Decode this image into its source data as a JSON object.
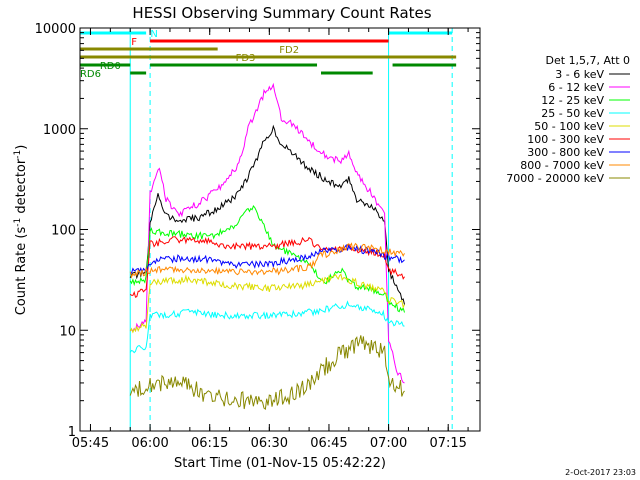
{
  "chart_data": {
    "type": "line",
    "title": "HESSI Observing Summary Count Rates",
    "xlabel": "Start Time (01-Nov-15 05:42:22)",
    "ylabel_main": "Count Rate (s",
    "ylabel_sup1": "-1",
    "ylabel_mid": " detector",
    "ylabel_sup2": "-1",
    "ylabel_end": ")",
    "y_scale": "log",
    "ylim": [
      1,
      10000
    ],
    "xlim": [
      "05:42:22",
      "07:23:00"
    ],
    "x_ticks": [
      "05:45",
      "06:00",
      "06:15",
      "06:30",
      "06:45",
      "07:00",
      "07:15"
    ],
    "y_ticks": [
      "1",
      "10",
      "100",
      "1000",
      "10000"
    ],
    "legend_header": "Det 1,5,7, Att 0",
    "legend_placement": "right",
    "timestamp": "2-Oct-2017 23:03",
    "series": [
      {
        "name": "3 - 6 keV",
        "color": "#000000",
        "points": [
          [
            "05:55",
            35
          ],
          [
            "05:59",
            36
          ],
          [
            "06:00",
            110
          ],
          [
            "06:02",
            230
          ],
          [
            "06:04",
            140
          ],
          [
            "06:07",
            120
          ],
          [
            "06:12",
            130
          ],
          [
            "06:17",
            160
          ],
          [
            "06:22",
            220
          ],
          [
            "06:26",
            420
          ],
          [
            "06:29",
            800
          ],
          [
            "06:31",
            1020
          ],
          [
            "06:33",
            700
          ],
          [
            "06:36",
            560
          ],
          [
            "06:40",
            400
          ],
          [
            "06:45",
            300
          ],
          [
            "06:48",
            260
          ],
          [
            "06:50",
            320
          ],
          [
            "06:52",
            200
          ],
          [
            "06:56",
            170
          ],
          [
            "06:59",
            120
          ],
          [
            "07:00",
            40
          ],
          [
            "07:03",
            22
          ],
          [
            "07:04",
            18
          ]
        ]
      },
      {
        "name": "6 - 12 keV",
        "color": "#ff00ff",
        "points": [
          [
            "05:55",
            10
          ],
          [
            "05:59",
            12
          ],
          [
            "06:00",
            230
          ],
          [
            "06:02",
            420
          ],
          [
            "06:03",
            320
          ],
          [
            "06:04",
            200
          ],
          [
            "06:07",
            140
          ],
          [
            "06:12",
            180
          ],
          [
            "06:17",
            250
          ],
          [
            "06:22",
            420
          ],
          [
            "06:25",
            1100
          ],
          [
            "06:29",
            2400
          ],
          [
            "06:31",
            2700
          ],
          [
            "06:33",
            1300
          ],
          [
            "06:36",
            1100
          ],
          [
            "06:40",
            750
          ],
          [
            "06:45",
            520
          ],
          [
            "06:48",
            480
          ],
          [
            "06:50",
            560
          ],
          [
            "06:52",
            350
          ],
          [
            "06:56",
            220
          ],
          [
            "06:59",
            140
          ],
          [
            "07:00",
            8
          ],
          [
            "07:02",
            4
          ],
          [
            "07:04",
            3
          ]
        ]
      },
      {
        "name": "12 - 25 keV",
        "color": "#00ff00",
        "points": [
          [
            "05:55",
            30
          ],
          [
            "05:59",
            32
          ],
          [
            "06:00",
            95
          ],
          [
            "06:07",
            90
          ],
          [
            "06:15",
            85
          ],
          [
            "06:20",
            100
          ],
          [
            "06:23",
            130
          ],
          [
            "06:26",
            175
          ],
          [
            "06:28",
            120
          ],
          [
            "06:31",
            70
          ],
          [
            "06:36",
            55
          ],
          [
            "06:40",
            45
          ],
          [
            "06:44",
            30
          ],
          [
            "06:48",
            40
          ],
          [
            "06:51",
            28
          ],
          [
            "06:56",
            25
          ],
          [
            "06:59",
            22
          ],
          [
            "07:00",
            20
          ],
          [
            "07:04",
            15
          ]
        ]
      },
      {
        "name": "25 - 50 keV",
        "color": "#00ffff",
        "points": [
          [
            "05:55",
            6
          ],
          [
            "05:59",
            7
          ],
          [
            "06:00",
            14
          ],
          [
            "06:10",
            15
          ],
          [
            "06:20",
            14
          ],
          [
            "06:30",
            14
          ],
          [
            "06:40",
            15
          ],
          [
            "06:50",
            18
          ],
          [
            "06:56",
            16
          ],
          [
            "06:59",
            14
          ],
          [
            "07:00",
            12
          ],
          [
            "07:04",
            11
          ]
        ]
      },
      {
        "name": "50 - 100 keV",
        "color": "#dddd00",
        "points": [
          [
            "05:55",
            10
          ],
          [
            "05:59",
            11
          ],
          [
            "06:00",
            30
          ],
          [
            "06:10",
            32
          ],
          [
            "06:20",
            28
          ],
          [
            "06:30",
            26
          ],
          [
            "06:40",
            28
          ],
          [
            "06:48",
            34
          ],
          [
            "06:54",
            28
          ],
          [
            "06:59",
            24
          ],
          [
            "07:00",
            20
          ],
          [
            "07:04",
            18
          ]
        ]
      },
      {
        "name": "100 - 300 keV",
        "color": "#ff0000",
        "points": [
          [
            "05:55",
            22
          ],
          [
            "05:59",
            25
          ],
          [
            "06:00",
            72
          ],
          [
            "06:07",
            80
          ],
          [
            "06:15",
            75
          ],
          [
            "06:20",
            68
          ],
          [
            "06:30",
            68
          ],
          [
            "06:40",
            78
          ],
          [
            "06:43",
            62
          ],
          [
            "06:50",
            66
          ],
          [
            "06:56",
            60
          ],
          [
            "06:59",
            55
          ],
          [
            "07:00",
            40
          ],
          [
            "07:04",
            34
          ]
        ]
      },
      {
        "name": "300 - 800 keV",
        "color": "#0000ff",
        "points": [
          [
            "05:55",
            38
          ],
          [
            "05:59",
            38
          ],
          [
            "06:00",
            48
          ],
          [
            "06:07",
            52
          ],
          [
            "06:15",
            50
          ],
          [
            "06:20",
            45
          ],
          [
            "06:30",
            45
          ],
          [
            "06:40",
            55
          ],
          [
            "06:43",
            60
          ],
          [
            "06:50",
            66
          ],
          [
            "06:56",
            60
          ],
          [
            "06:59",
            55
          ],
          [
            "07:00",
            52
          ],
          [
            "07:04",
            50
          ]
        ]
      },
      {
        "name": "800 - 7000 keV",
        "color": "#ff8800",
        "points": [
          [
            "05:55",
            36
          ],
          [
            "05:59",
            38
          ],
          [
            "06:00",
            40
          ],
          [
            "06:10",
            40
          ],
          [
            "06:20",
            38
          ],
          [
            "06:30",
            38
          ],
          [
            "06:40",
            42
          ],
          [
            "06:43",
            55
          ],
          [
            "06:50",
            68
          ],
          [
            "06:56",
            65
          ],
          [
            "06:59",
            62
          ],
          [
            "07:00",
            60
          ],
          [
            "07:04",
            58
          ]
        ]
      },
      {
        "name": "7000 - 20000 keV",
        "color": "#888800",
        "points": [
          [
            "05:55",
            2.5
          ],
          [
            "06:00",
            3
          ],
          [
            "06:05",
            3
          ],
          [
            "06:10",
            2.8
          ],
          [
            "06:15",
            2.2
          ],
          [
            "06:20",
            2
          ],
          [
            "06:25",
            2
          ],
          [
            "06:30",
            2
          ],
          [
            "06:35",
            2.2
          ],
          [
            "06:40",
            3
          ],
          [
            "06:43",
            4
          ],
          [
            "06:47",
            5.5
          ],
          [
            "06:52",
            7.5
          ],
          [
            "06:56",
            7
          ],
          [
            "06:59",
            6
          ],
          [
            "07:00",
            3
          ],
          [
            "07:04",
            2.5
          ]
        ]
      }
    ],
    "flags": [
      {
        "name": "N",
        "color": "#00ffff",
        "level": 1,
        "label_at": "06:01",
        "segments": [
          [
            "05:42:22",
            "05:59"
          ],
          [
            "07:00",
            "07:16"
          ]
        ]
      },
      {
        "name": "F",
        "color": "#ff0000",
        "level": 2,
        "label_at": "05:56",
        "segments": [
          [
            "06:00",
            "07:00"
          ]
        ]
      },
      {
        "name": "FD2",
        "color": "#888800",
        "level": 3,
        "label_at": "06:35",
        "segments": [
          [
            "05:42:22",
            "06:17"
          ]
        ]
      },
      {
        "name": "FD3",
        "color": "#888800",
        "level": 4,
        "label_at": "06:24",
        "segments": [
          [
            "05:42:22",
            "07:17"
          ]
        ]
      },
      {
        "name": "RD0",
        "color": "#008800",
        "level": 5,
        "label_at": "05:50",
        "segments": [
          [
            "05:42:22",
            "05:55"
          ],
          [
            "06:00",
            "06:42"
          ],
          [
            "07:01",
            "07:17"
          ]
        ]
      },
      {
        "name": "RD6",
        "color": "#008800",
        "level": 6,
        "label_at": "05:45",
        "segments": [
          [
            "05:55",
            "05:59"
          ],
          [
            "06:43",
            "06:56"
          ]
        ]
      }
    ],
    "vlines": [
      {
        "t": "05:42:22",
        "style": "solid"
      },
      {
        "t": "05:55",
        "style": "solid"
      },
      {
        "t": "06:00",
        "style": "dashed"
      },
      {
        "t": "07:00",
        "style": "solid"
      },
      {
        "t": "07:16",
        "style": "dashed"
      }
    ]
  }
}
